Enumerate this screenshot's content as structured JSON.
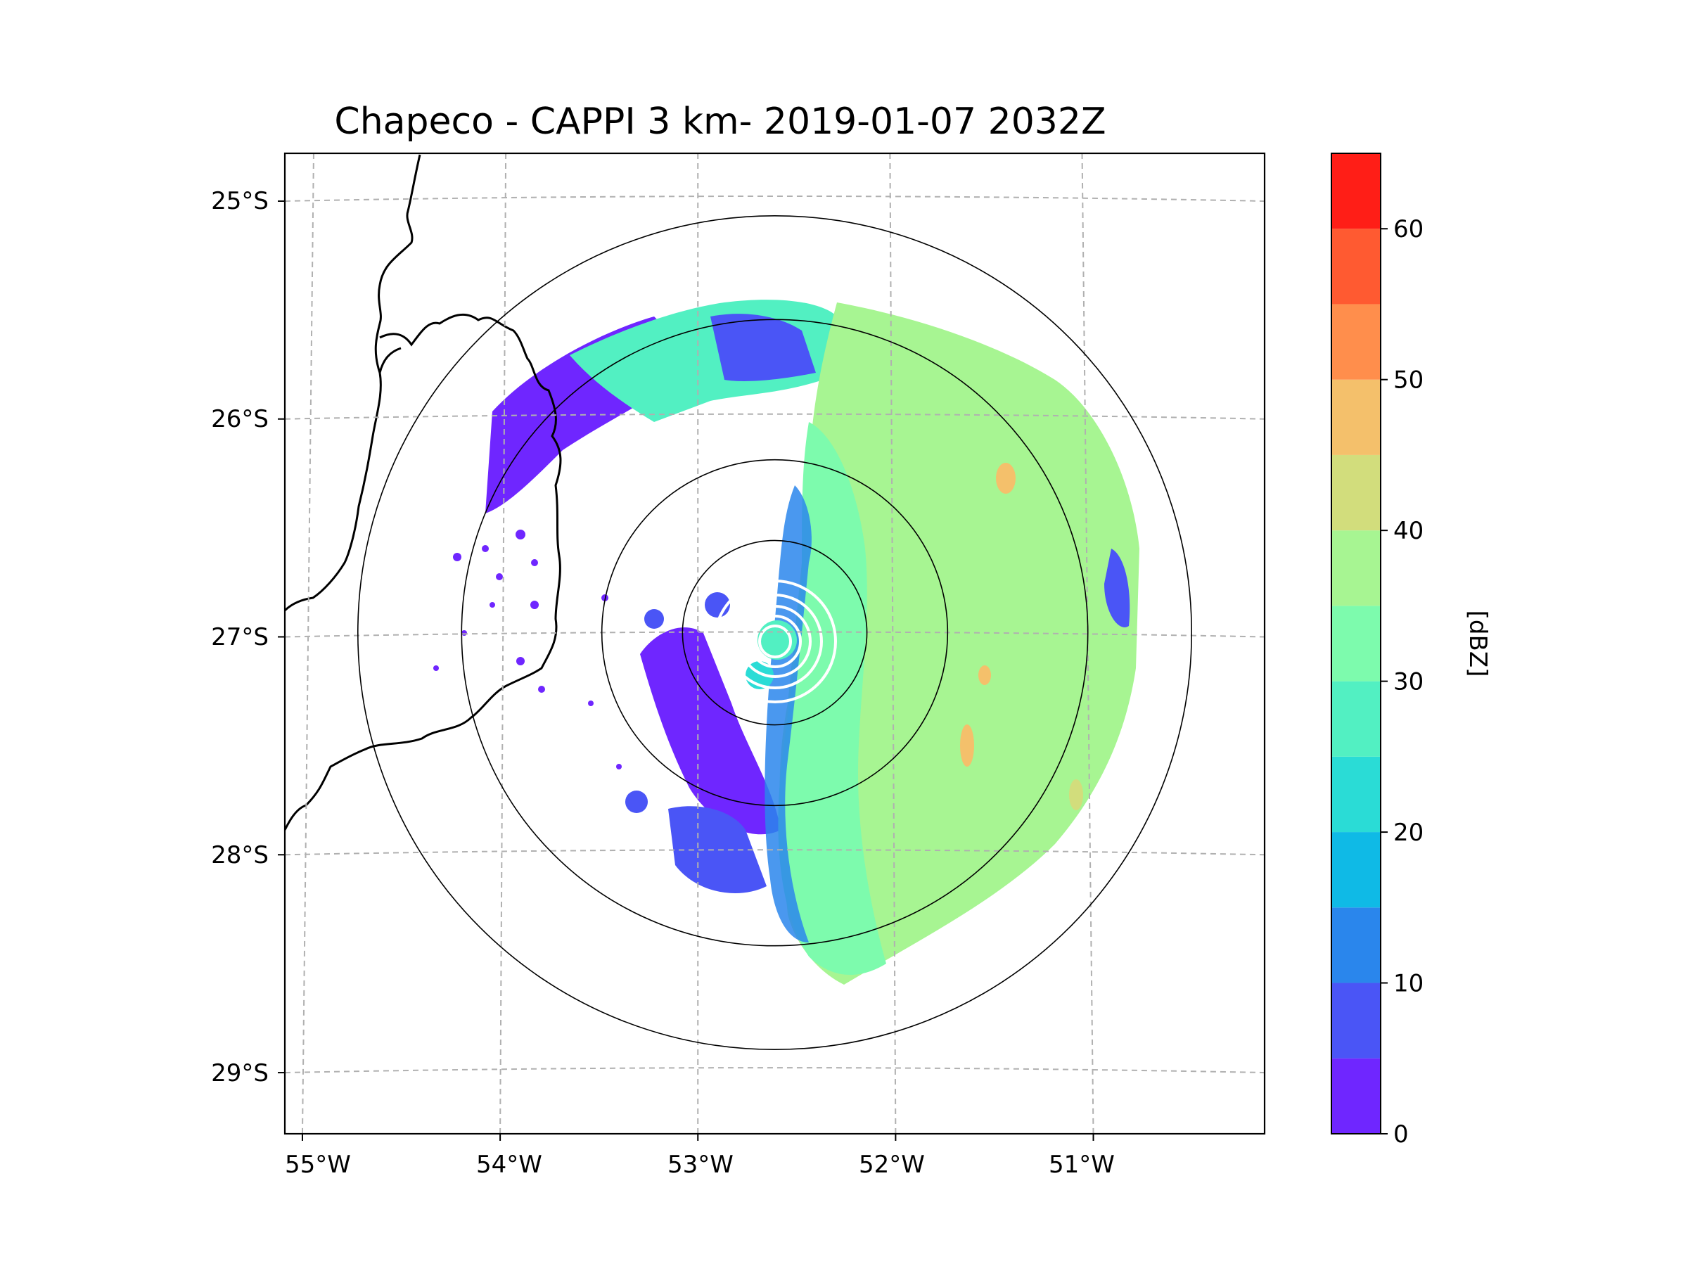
{
  "chart_data": {
    "type": "heatmap",
    "title": "Chapeco - CAPPI 3 km- 2019-01-07 2032Z",
    "colorbar": {
      "label": "[dBZ]",
      "min": 0,
      "max": 65,
      "tick_values": [
        0,
        10,
        20,
        30,
        40,
        50,
        60
      ],
      "tick_labels": [
        "0",
        "10",
        "20",
        "30",
        "40",
        "50",
        "60"
      ],
      "levels": [
        {
          "from": 0,
          "to": 5,
          "color": "#6f26ff"
        },
        {
          "from": 5,
          "to": 10,
          "color": "#4a55f6"
        },
        {
          "from": 10,
          "to": 15,
          "color": "#2a86ec"
        },
        {
          "from": 15,
          "to": 20,
          "color": "#0fbae6"
        },
        {
          "from": 20,
          "to": 25,
          "color": "#2adcd6"
        },
        {
          "from": 25,
          "to": 30,
          "color": "#52f0c2"
        },
        {
          "from": 30,
          "to": 35,
          "color": "#7dfbad"
        },
        {
          "from": 35,
          "to": 40,
          "color": "#a7f592"
        },
        {
          "from": 40,
          "to": 45,
          "color": "#d2dd7c"
        },
        {
          "from": 45,
          "to": 50,
          "color": "#f4c06b"
        },
        {
          "from": 50,
          "to": 55,
          "color": "#ff8e4c"
        },
        {
          "from": 55,
          "to": 60,
          "color": "#ff5a31"
        },
        {
          "from": 60,
          "to": 65,
          "color": "#ff1e17"
        }
      ]
    },
    "axes": {
      "lon_range": [
        -55.15,
        -50.05
      ],
      "lat_range": [
        -29.3,
        -24.8
      ],
      "lon_ticks": [
        -55,
        -54,
        -53,
        -52,
        -51
      ],
      "lon_tick_labels": [
        "55°W",
        "54°W",
        "53°W",
        "52°W",
        "51°W"
      ],
      "lat_ticks": [
        -25,
        -26,
        -27,
        -28,
        -29
      ],
      "lat_tick_labels": [
        "25°S",
        "26°S",
        "27°S",
        "28°S",
        "29°S"
      ],
      "grid": true
    },
    "radar": {
      "center_lon": -52.6,
      "center_lat": -27.0,
      "range_rings_deg": [
        0.48,
        0.9,
        1.63,
        2.17
      ],
      "data_coverage_radius_deg": 1.64
    },
    "field_regions": [
      {
        "name": "eastern-stratiform-rain",
        "approx_dbz": 38
      },
      {
        "name": "mid-level-band",
        "approx_dbz": 30
      },
      {
        "name": "western-weak-echo",
        "approx_dbz": 3
      }
    ]
  }
}
